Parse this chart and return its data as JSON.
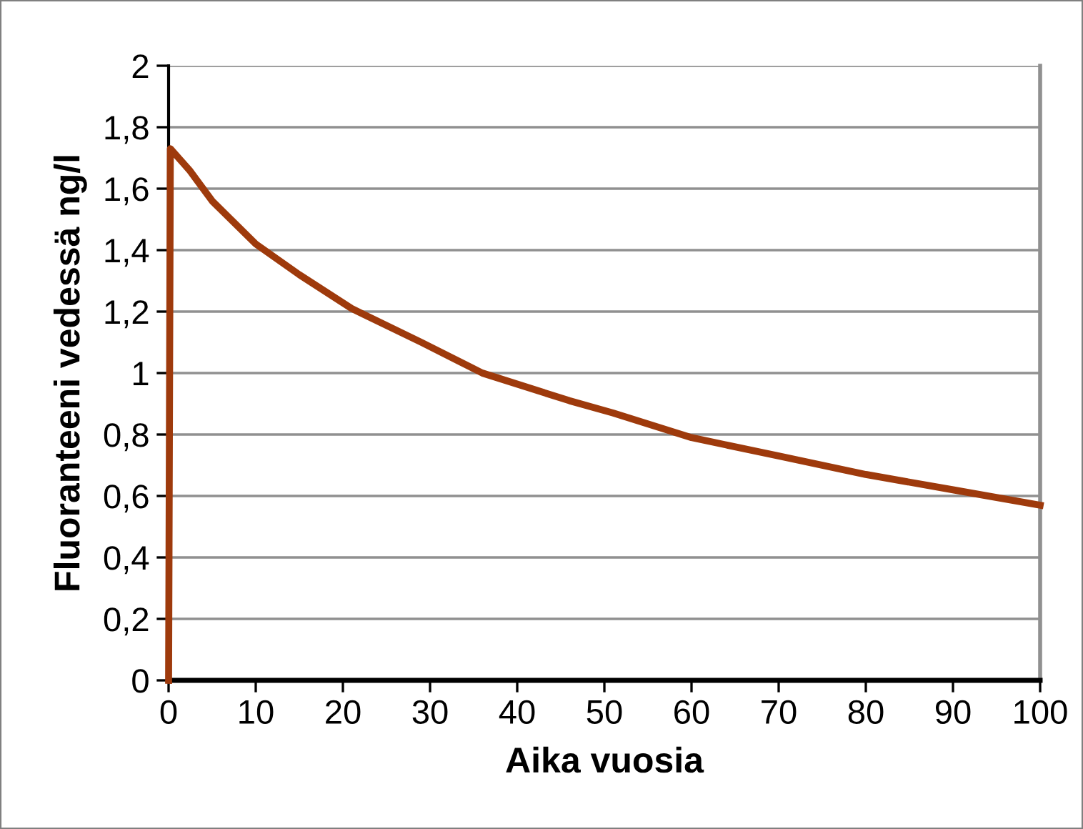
{
  "chart_data": {
    "type": "line",
    "xlabel": "Aika vuosia",
    "ylabel": "Fluoranteeni vedessä ng/l",
    "series": [
      {
        "color": "#9e3a0c",
        "x": [
          0,
          0.2,
          2.4,
          5,
          10,
          15,
          21,
          29,
          36,
          46,
          51,
          60,
          70,
          80,
          90,
          100
        ],
        "values": [
          0,
          1.73,
          1.66,
          1.56,
          1.42,
          1.32,
          1.21,
          1.1,
          1.0,
          0.91,
          0.87,
          0.79,
          0.73,
          0.67,
          0.62,
          0.57
        ]
      }
    ],
    "xlim": [
      0,
      100
    ],
    "xticks": [
      0,
      10,
      20,
      30,
      40,
      50,
      60,
      70,
      80,
      90,
      100
    ],
    "ylim": [
      0,
      2
    ],
    "yticks": [
      0,
      {
        "value": 0.2,
        "label": "0,2"
      },
      {
        "value": 0.4,
        "label": "0,4"
      },
      {
        "value": 0.6,
        "label": "0,6"
      },
      {
        "value": 0.8,
        "label": "0,8"
      },
      1,
      {
        "value": 1.2,
        "label": "1,2"
      },
      {
        "value": 1.4,
        "label": "1,4"
      },
      {
        "value": 1.6,
        "label": "1,6"
      },
      {
        "value": 1.8,
        "label": "1,8"
      },
      2
    ],
    "grid": "y",
    "legend": false,
    "marker": "none",
    "line_style": "solid"
  }
}
